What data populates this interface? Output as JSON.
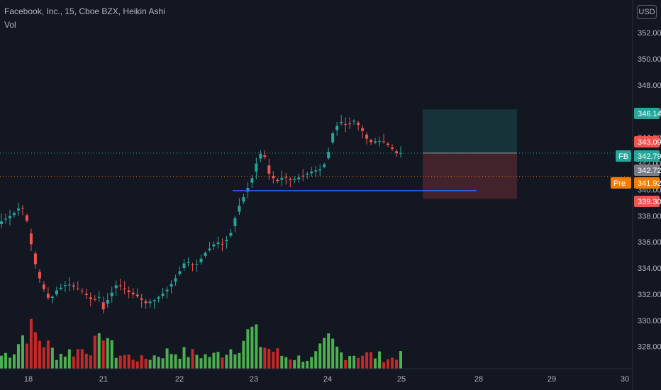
{
  "legend": {
    "title": "Facebook, Inc., 15, Cboe BZX, Heikin Ashi",
    "volume_label": "Vol"
  },
  "currency": "USD",
  "colors": {
    "background": "#131722",
    "up": "#26a69a",
    "down": "#ef5350",
    "vol_up": "#4caf50",
    "vol_down": "#c62828",
    "target_zone": "#26a69a",
    "stop_zone": "#ef5350",
    "support_line": "#2962ff",
    "pre_tag": "#f57c00",
    "last_tag": "#787b86"
  },
  "chart_data": {
    "type": "candlestick",
    "symbol": "FB",
    "interval": "15",
    "y_ticks": [
      328.0,
      330.0,
      332.0,
      334.0,
      336.0,
      338.0,
      340.0,
      342.0,
      344.0,
      346.0,
      348.0,
      350.0,
      352.0
    ],
    "ylim": [
      326.3,
      354.5
    ],
    "x_ticks": [
      "18",
      "21",
      "22",
      "23",
      "24",
      "25",
      "28",
      "29",
      "30"
    ],
    "grid": false,
    "price_tags": [
      {
        "label": "",
        "value": "346.14",
        "y": 346.14,
        "kind": "target"
      },
      {
        "label": "",
        "value": "343.09",
        "y": 343.09,
        "kind": "down"
      },
      {
        "label": "FB",
        "value": "342.79",
        "y": 342.79,
        "kind": "up"
      },
      {
        "label": "",
        "value": "342.72",
        "y": 342.72,
        "kind": "last"
      },
      {
        "label": "Pre",
        "value": "341.92",
        "y": 341.92,
        "kind": "pre"
      },
      {
        "label": "",
        "value": "339.30",
        "y": 339.3,
        "kind": "stop"
      }
    ],
    "position": {
      "entry": 342.79,
      "target": 346.14,
      "stop": 339.3
    },
    "support_level": 339.92,
    "key_path": [
      [
        0,
        337.5
      ],
      [
        15,
        338.0
      ],
      [
        22,
        338.3
      ],
      [
        30,
        338.8
      ],
      [
        37,
        337.9
      ],
      [
        45,
        335.5
      ],
      [
        52,
        333.8
      ],
      [
        60,
        332.6
      ],
      [
        70,
        331.5
      ],
      [
        80,
        332.3
      ],
      [
        95,
        332.8
      ],
      [
        115,
        332.3
      ],
      [
        130,
        331.5
      ],
      [
        140,
        331.8
      ],
      [
        146,
        330.8
      ],
      [
        152,
        331.6
      ],
      [
        165,
        332.8
      ],
      [
        180,
        332.2
      ],
      [
        195,
        331.8
      ],
      [
        205,
        331.3
      ],
      [
        220,
        331.6
      ],
      [
        235,
        332.3
      ],
      [
        250,
        333.4
      ],
      [
        262,
        334.6
      ],
      [
        275,
        334.1
      ],
      [
        290,
        335.2
      ],
      [
        305,
        336.0
      ],
      [
        315,
        335.8
      ],
      [
        325,
        336.6
      ],
      [
        335,
        338.5
      ],
      [
        345,
        339.6
      ],
      [
        355,
        340.8
      ],
      [
        363,
        342.3
      ],
      [
        371,
        343.1
      ],
      [
        378,
        341.3
      ],
      [
        390,
        340.6
      ],
      [
        400,
        341.0
      ],
      [
        410,
        340.7
      ],
      [
        425,
        341.0
      ],
      [
        440,
        341.4
      ],
      [
        455,
        341.6
      ],
      [
        462,
        342.6
      ],
      [
        470,
        344.5
      ],
      [
        480,
        345.2
      ],
      [
        490,
        344.9
      ],
      [
        500,
        345.3
      ],
      [
        510,
        344.6
      ],
      [
        520,
        343.6
      ],
      [
        530,
        343.7
      ],
      [
        540,
        343.7
      ],
      [
        550,
        343.3
      ],
      [
        558,
        342.8
      ],
      [
        565,
        342.8
      ]
    ],
    "bars": 95,
    "vol_path": [
      [
        0,
        8
      ],
      [
        20,
        12
      ],
      [
        38,
        26
      ],
      [
        60,
        18
      ],
      [
        80,
        9
      ],
      [
        110,
        12
      ],
      [
        140,
        16
      ],
      [
        146,
        28
      ],
      [
        160,
        10
      ],
      [
        200,
        6
      ],
      [
        240,
        11
      ],
      [
        260,
        10
      ],
      [
        300,
        8
      ],
      [
        330,
        14
      ],
      [
        355,
        24
      ],
      [
        370,
        15
      ],
      [
        400,
        8
      ],
      [
        440,
        6
      ],
      [
        465,
        18
      ],
      [
        480,
        10
      ],
      [
        520,
        9
      ],
      [
        560,
        6
      ],
      [
        565,
        18
      ]
    ]
  }
}
